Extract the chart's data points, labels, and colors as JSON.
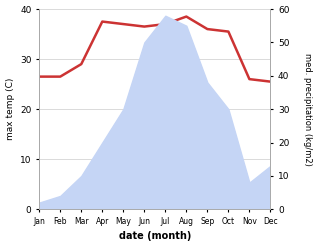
{
  "months": [
    "Jan",
    "Feb",
    "Mar",
    "Apr",
    "May",
    "Jun",
    "Jul",
    "Aug",
    "Sep",
    "Oct",
    "Nov",
    "Dec"
  ],
  "x": [
    0,
    1,
    2,
    3,
    4,
    5,
    6,
    7,
    8,
    9,
    10,
    11
  ],
  "temp": [
    26.5,
    26.5,
    29,
    37.5,
    37,
    36.5,
    37,
    38.5,
    36,
    35.5,
    26,
    25.5
  ],
  "precip": [
    2,
    4,
    10,
    20,
    30,
    50,
    58,
    55,
    38,
    30,
    8,
    13
  ],
  "temp_color": "#cc3333",
  "precip_fill_color": "#c5d5f5",
  "temp_ylim": [
    0,
    40
  ],
  "precip_ylim": [
    0,
    60
  ],
  "xlabel": "date (month)",
  "ylabel_left": "max temp (C)",
  "ylabel_right": "med. precipitation (kg/m2)",
  "temp_linewidth": 1.8
}
